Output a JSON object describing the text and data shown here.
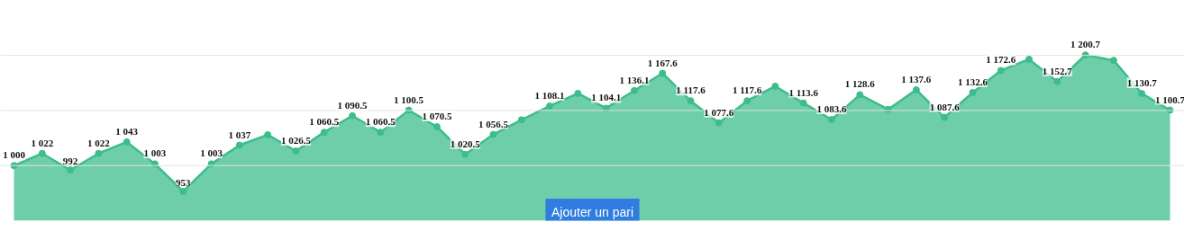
{
  "chart_data": {
    "type": "area",
    "categories": [
      null,
      null,
      null,
      null,
      null,
      null,
      null,
      null,
      null,
      null,
      null,
      null,
      null,
      null,
      null,
      null,
      null,
      null,
      null,
      null,
      null,
      null,
      null,
      null,
      null,
      null,
      null,
      null,
      null,
      null,
      null,
      null,
      null,
      null,
      null,
      null,
      null,
      null,
      null,
      null,
      null,
      null
    ],
    "series": [
      {
        "color": "#3dbd8c",
        "values": [
          1000,
          1022,
          992,
          1022,
          1043,
          1003,
          953,
          1003,
          1037,
          1056,
          1026.5,
          1060.5,
          1090.5,
          1060.5,
          1100.5,
          1070.5,
          1020.5,
          1056.5,
          1083,
          1108.1,
          1131,
          1104.1,
          1136.1,
          1167.6,
          1117.6,
          1077.6,
          1117.6,
          1144,
          1113.6,
          1083.6,
          1128.6,
          1102,
          1137.6,
          1087.6,
          1132.6,
          1172.6,
          1193,
          1152.7,
          1200.7,
          1191,
          1130.7,
          1100.7
        ],
        "value_labels": [
          "1 000",
          "1 022",
          "992",
          "1 022",
          "1 043",
          "1 003",
          "953",
          "1 003",
          "1 037",
          null,
          "1 026.5",
          "1 060.5",
          "1 090.5",
          "1 060.5",
          "1 100.5",
          "1 070.5",
          "1 020.5",
          "1 056.5",
          null,
          "1 108.1",
          null,
          "1 104.1",
          "1 136.1",
          "1 167.6",
          "1 117.6",
          "1 077.6",
          "1 117.6",
          null,
          "1 113.6",
          "1 083.6",
          "1 128.6",
          null,
          "1 137.6",
          "1 087.6",
          "1 132.6",
          "1 172.6",
          null,
          "1 152.7",
          "1 200.7",
          null,
          "1 130.7",
          "1 100.7"
        ]
      }
    ],
    "tick_labels": false,
    "marker": "circle",
    "ref_lines": [
      {
        "axis": "y",
        "value": 1000,
        "color": "#e3e3e3"
      },
      {
        "axis": "y",
        "value": 1100,
        "color": "#e3e3e3"
      },
      {
        "axis": "y",
        "value": 1200,
        "color": "#e3e3e3"
      }
    ],
    "annotations": [
      "Ajouter un pari"
    ]
  }
}
